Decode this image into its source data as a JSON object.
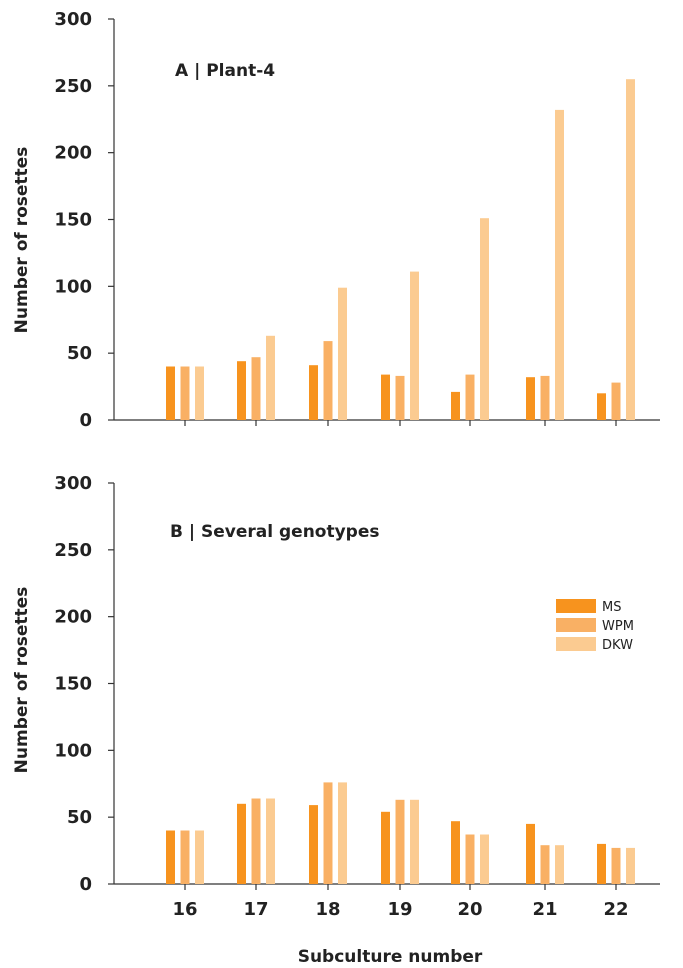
{
  "colors": {
    "MS": "#f7931e",
    "WPM": "#f9b064",
    "DKW": "#fbcb91",
    "axis": "#333333"
  },
  "xlabel": "Subculture number",
  "legend": [
    "MS",
    "WPM",
    "DKW"
  ],
  "chart_data": [
    {
      "type": "bar",
      "title": "A | Plant-4",
      "xlabel": "Subculture number",
      "ylabel": "Number of rosettes",
      "ylim": [
        0,
        300
      ],
      "yticks": [
        0,
        50,
        100,
        150,
        200,
        250,
        300
      ],
      "categories": [
        "16",
        "17",
        "18",
        "19",
        "20",
        "21",
        "22"
      ],
      "series": [
        {
          "name": "MS",
          "values": [
            40,
            44,
            41,
            34,
            21,
            32,
            20
          ]
        },
        {
          "name": "WPM",
          "values": [
            40,
            47,
            59,
            33,
            34,
            33,
            28
          ]
        },
        {
          "name": "DKW",
          "values": [
            40,
            63,
            99,
            111,
            151,
            232,
            255
          ]
        }
      ]
    },
    {
      "type": "bar",
      "title": "B | Several genotypes",
      "xlabel": "Subculture number",
      "ylabel": "Number of rosettes",
      "ylim": [
        0,
        300
      ],
      "yticks": [
        0,
        50,
        100,
        150,
        200,
        250,
        300
      ],
      "categories": [
        "16",
        "17",
        "18",
        "19",
        "20",
        "21",
        "22"
      ],
      "legend_position": "right",
      "series": [
        {
          "name": "MS",
          "values": [
            40,
            60,
            59,
            54,
            47,
            45,
            30
          ]
        },
        {
          "name": "WPM",
          "values": [
            40,
            64,
            76,
            63,
            37,
            29,
            27
          ]
        },
        {
          "name": "DKW",
          "values": [
            40,
            64,
            76,
            63,
            37,
            29,
            27
          ]
        }
      ]
    }
  ]
}
